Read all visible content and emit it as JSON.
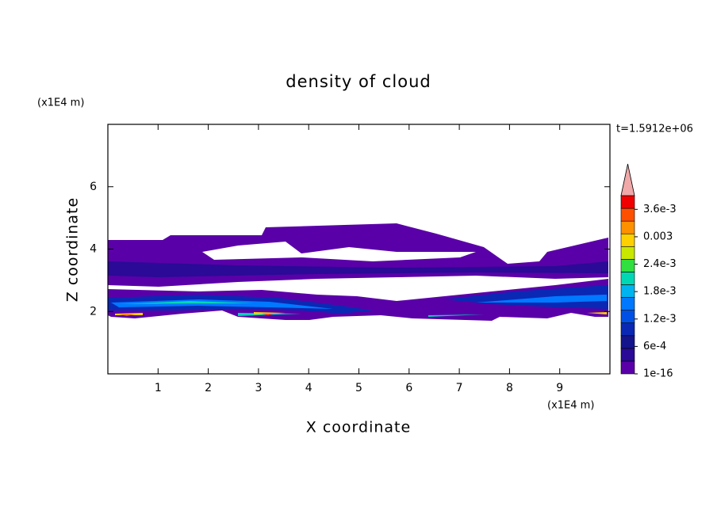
{
  "chart_data": {
    "type": "contour",
    "title": "density of cloud",
    "x_label": "X coordinate",
    "y_label": "Z coordinate",
    "x_unit": "(x1E4 m)",
    "y_unit": "(x1E4 m)",
    "annotation": "t=1.5912e+06",
    "xlim": [
      0,
      10
    ],
    "ylim": [
      0,
      8
    ],
    "xticks": [
      1,
      2,
      3,
      4,
      5,
      6,
      7,
      8,
      9
    ],
    "yticks": [
      2,
      4,
      6
    ],
    "colorbar": {
      "clim": [
        0,
        0.0039
      ],
      "ticks": [
        {
          "value": 1e-16,
          "label": "1e-16"
        },
        {
          "value": 0.0006,
          "label": "6e-4"
        },
        {
          "value": 0.0012,
          "label": "1.2e-3"
        },
        {
          "value": 0.0018,
          "label": "1.8e-3"
        },
        {
          "value": 0.0024,
          "label": "2.4e-3"
        },
        0.003,
        {
          "value": 0.0036,
          "label": "3.6e-3"
        }
      ],
      "colors": [
        "#5a00a8",
        "#2a0a96",
        "#14148c",
        "#0a28b4",
        "#0050e6",
        "#0078ff",
        "#00b4f0",
        "#00d8b4",
        "#30e040",
        "#c8e800",
        "#ffd000",
        "#ff9000",
        "#ff5000",
        "#f00000"
      ],
      "extend_color": "#f0a8a8"
    }
  }
}
